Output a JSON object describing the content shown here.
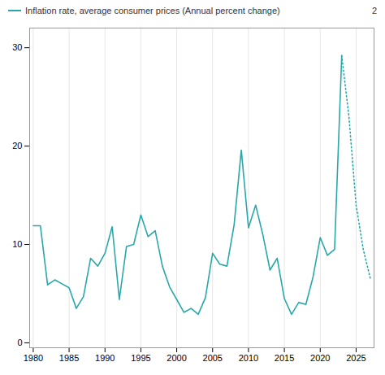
{
  "chart_data": {
    "type": "line",
    "x": [
      1980,
      1981,
      1982,
      1983,
      1984,
      1985,
      1986,
      1987,
      1988,
      1989,
      1990,
      1991,
      1992,
      1993,
      1994,
      1995,
      1996,
      1997,
      1998,
      1999,
      2000,
      2001,
      2002,
      2003,
      2004,
      2005,
      2006,
      2007,
      2008,
      2009,
      2010,
      2011,
      2012,
      2013,
      2014,
      2015,
      2016,
      2017,
      2018,
      2019,
      2020,
      2021,
      2022,
      2023,
      2024,
      2025,
      2026,
      2027
    ],
    "series": [
      {
        "name": "Inflation rate, average consumer prices (Annual percent change)",
        "color": "#29a8ab",
        "line_style": "solid",
        "values": [
          11.9,
          11.9,
          5.9,
          6.4,
          6.0,
          5.6,
          3.5,
          4.7,
          8.6,
          7.8,
          9.1,
          11.8,
          4.4,
          9.8,
          10.0,
          13.0,
          10.8,
          11.4,
          7.8,
          5.7,
          4.4,
          3.1,
          3.5,
          2.9,
          4.6,
          9.1,
          8.0,
          7.8,
          12.0,
          19.6,
          11.7,
          14.0,
          11.0,
          7.4,
          8.6,
          4.5,
          2.9,
          4.1,
          3.9,
          6.7,
          10.7,
          8.9,
          9.5,
          29.2,
          null,
          null,
          null,
          null
        ]
      },
      {
        "color": "#29a8ab",
        "line_style": "dotted",
        "values": [
          null,
          null,
          null,
          null,
          null,
          null,
          null,
          null,
          null,
          null,
          null,
          null,
          null,
          null,
          null,
          null,
          null,
          null,
          null,
          null,
          null,
          null,
          null,
          null,
          null,
          null,
          null,
          null,
          null,
          null,
          null,
          null,
          null,
          null,
          null,
          null,
          null,
          null,
          null,
          null,
          null,
          null,
          null,
          29.2,
          23.0,
          14.0,
          9.5,
          6.5
        ]
      }
    ],
    "xlim": [
      1979.5,
      2027.5
    ],
    "ylim": [
      -0.5,
      32
    ],
    "xticks": [
      1980,
      1985,
      1990,
      1995,
      2000,
      2005,
      2010,
      2015,
      2020,
      2025
    ],
    "yticks": [
      0,
      10,
      20,
      30
    ],
    "grid": "x",
    "legend": "top-left",
    "annotations": [
      "2"
    ]
  }
}
